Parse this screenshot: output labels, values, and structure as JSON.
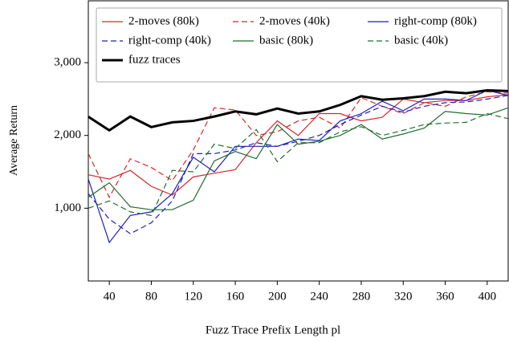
{
  "chart_data": {
    "type": "line",
    "xlabel": "Fuzz Trace Prefix Length pl",
    "ylabel": "Average Return",
    "x": [
      20,
      40,
      60,
      80,
      100,
      120,
      140,
      160,
      180,
      200,
      220,
      240,
      260,
      280,
      300,
      320,
      340,
      360,
      380,
      400,
      420
    ],
    "xlim": [
      20,
      420
    ],
    "xticks": [
      40,
      80,
      120,
      160,
      200,
      240,
      280,
      320,
      360,
      400
    ],
    "ylim": [
      0,
      3850
    ],
    "yticks": [
      {
        "value": 1000,
        "label": "1,000"
      },
      {
        "value": 2000,
        "label": "2,000"
      },
      {
        "value": 3000,
        "label": "3,000"
      }
    ],
    "legend": "upper left",
    "series": [
      {
        "name": "2-moves (80k)",
        "color": "#d62728",
        "dash": false,
        "width": 1.2,
        "values": [
          1460,
          1400,
          1520,
          1300,
          1180,
          1430,
          1480,
          1530,
          1900,
          2200,
          2000,
          2300,
          2300,
          2200,
          2250,
          2500,
          2450,
          2480,
          2480,
          2530,
          2560
        ]
      },
      {
        "name": "2-moves (40k)",
        "color": "#d62728",
        "dash": true,
        "width": 1.2,
        "values": [
          1750,
          1150,
          1680,
          1560,
          1380,
          1800,
          2380,
          2350,
          2000,
          2050,
          2200,
          2250,
          2100,
          2520,
          2400,
          2300,
          2450,
          2400,
          2530,
          2600,
          2580
        ]
      },
      {
        "name": "right-comp (80k)",
        "color": "#1f1fbf",
        "dash": false,
        "width": 1.2,
        "values": [
          1400,
          530,
          900,
          950,
          1200,
          1700,
          1500,
          1850,
          1850,
          1850,
          1950,
          1930,
          2200,
          2300,
          2470,
          2340,
          2500,
          2500,
          2480,
          2620,
          2550
        ]
      },
      {
        "name": "right-comp (40k)",
        "color": "#1f1fbf",
        "dash": true,
        "width": 1.2,
        "values": [
          1200,
          850,
          650,
          800,
          1100,
          1750,
          1750,
          1800,
          1900,
          1850,
          1920,
          2000,
          2150,
          2280,
          2400,
          2320,
          2400,
          2450,
          2460,
          2500,
          2550
        ]
      },
      {
        "name": "basic (80k)",
        "color": "#1e6e2e",
        "dash": false,
        "width": 1.2,
        "values": [
          1150,
          1350,
          1020,
          980,
          980,
          1110,
          1650,
          1780,
          1680,
          2150,
          1880,
          1920,
          2000,
          2150,
          1950,
          2020,
          2100,
          2330,
          2300,
          2280,
          2380
        ]
      },
      {
        "name": "basic (40k)",
        "color": "#1e6e2e",
        "dash": true,
        "width": 1.2,
        "values": [
          1000,
          1100,
          950,
          900,
          1520,
          1500,
          1880,
          1820,
          2080,
          1640,
          1900,
          1900,
          2050,
          2120,
          2000,
          2070,
          2150,
          2170,
          2180,
          2300,
          2230
        ]
      },
      {
        "name": "fuzz traces",
        "color": "#000000",
        "dash": false,
        "width": 3,
        "values": [
          2257,
          2070,
          2260,
          2115,
          2180,
          2200,
          2260,
          2330,
          2290,
          2370,
          2300,
          2330,
          2420,
          2540,
          2490,
          2510,
          2540,
          2600,
          2580,
          2620,
          2610
        ]
      }
    ]
  }
}
